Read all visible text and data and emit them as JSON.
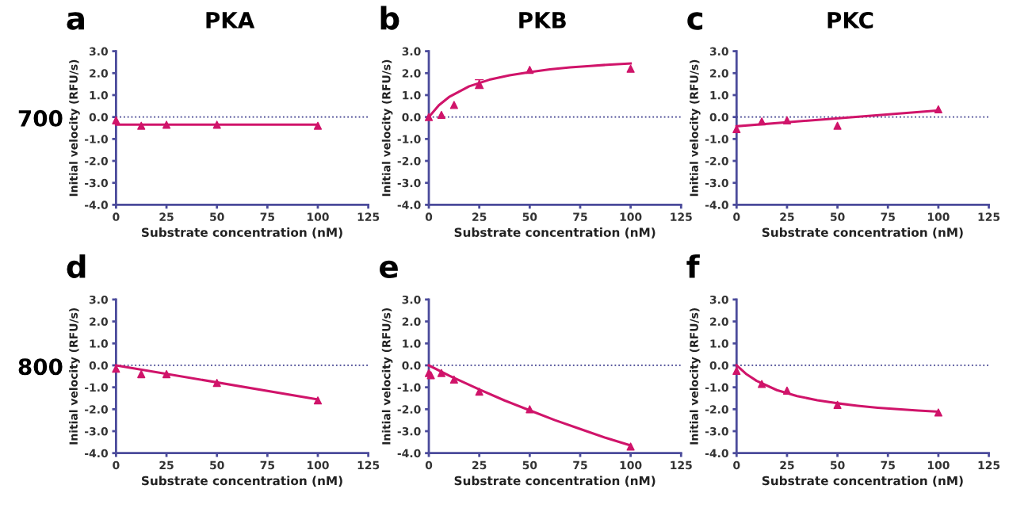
{
  "chart_data": [
    {
      "type": "scatter",
      "title": "a",
      "subtitle": "PKA",
      "annotations": [
        "700"
      ],
      "xlabel": "Substrate concentration (nM)",
      "ylabel": "Initial velocity (RFU/s)",
      "xlim": [
        0,
        125
      ],
      "xticks": [
        0,
        25,
        50,
        75,
        100,
        125
      ],
      "ylim": [
        -4,
        3
      ],
      "yticks": [
        {
          "value": -4,
          "label": "-4.0"
        },
        {
          "value": -3,
          "label": "-3.0"
        },
        {
          "value": -2,
          "label": "-2.0"
        },
        {
          "value": -1,
          "label": "-1.0"
        },
        {
          "value": 0,
          "label": "0.0"
        },
        {
          "value": 1,
          "label": "1.0"
        },
        {
          "value": 2,
          "label": "2.0"
        },
        {
          "value": 3,
          "label": "3.0"
        }
      ],
      "grid": false,
      "ref_lines": [
        {
          "axis": "y",
          "value": 0,
          "color": "#3c3c8c",
          "line_style": "dotted"
        }
      ],
      "series": [
        {
          "marker": "triangle",
          "color": "#d0146a",
          "x": [
            0,
            12.5,
            25,
            50,
            100
          ],
          "values": [
            -0.15,
            -0.4,
            -0.35,
            -0.35,
            -0.4
          ]
        },
        {
          "type": "line",
          "marker": "none",
          "color": "#d0146a",
          "x": [
            0,
            100
          ],
          "values": [
            -0.35,
            -0.35
          ]
        }
      ]
    },
    {
      "type": "scatter",
      "title": "b",
      "subtitle": "PKB",
      "xlabel": "Substrate concentration (nM)",
      "ylabel": "Initial velocity (RFU/s)",
      "xlim": [
        0,
        125
      ],
      "xticks": [
        0,
        25,
        50,
        75,
        100,
        125
      ],
      "ylim": [
        -4,
        3
      ],
      "yticks": [
        {
          "value": -4,
          "label": "-4.0"
        },
        {
          "value": -3,
          "label": "-3.0"
        },
        {
          "value": -2,
          "label": "-2.0"
        },
        {
          "value": -1,
          "label": "-1.0"
        },
        {
          "value": 0,
          "label": "0.0"
        },
        {
          "value": 1,
          "label": "1.0"
        },
        {
          "value": 2,
          "label": "2.0"
        },
        {
          "value": 3,
          "label": "3.0"
        }
      ],
      "grid": false,
      "ref_lines": [
        {
          "axis": "y",
          "value": 0,
          "color": "#3c3c8c",
          "line_style": "dotted"
        }
      ],
      "series": [
        {
          "marker": "triangle",
          "color": "#d0146a",
          "x": [
            0,
            6.25,
            12.5,
            25,
            50,
            100
          ],
          "values": [
            0,
            0.1,
            0.55,
            1.5,
            2.15,
            2.2
          ],
          "errors": [
            null,
            null,
            null,
            0.2,
            null,
            null
          ]
        },
        {
          "type": "line",
          "marker": "none",
          "color": "#d0146a",
          "x": [
            0,
            5,
            10,
            20,
            30,
            40,
            50,
            60,
            70,
            80,
            90,
            100
          ],
          "values": [
            0,
            0.54,
            0.91,
            1.4,
            1.7,
            1.9,
            2.05,
            2.17,
            2.26,
            2.33,
            2.39,
            2.44
          ]
        }
      ]
    },
    {
      "type": "scatter",
      "title": "c",
      "subtitle": "PKC",
      "xlabel": "Substrate concentration (nM)",
      "ylabel": "Initial velocity (RFU/s)",
      "xlim": [
        0,
        125
      ],
      "xticks": [
        0,
        25,
        50,
        75,
        100,
        125
      ],
      "ylim": [
        -4,
        3
      ],
      "yticks": [
        {
          "value": -4,
          "label": "-4.0"
        },
        {
          "value": -3,
          "label": "-3.0"
        },
        {
          "value": -2,
          "label": "-2.0"
        },
        {
          "value": -1,
          "label": "-1.0"
        },
        {
          "value": 0,
          "label": "0.0"
        },
        {
          "value": 1,
          "label": "1.0"
        },
        {
          "value": 2,
          "label": "2.0"
        },
        {
          "value": 3,
          "label": "3.0"
        }
      ],
      "grid": false,
      "ref_lines": [
        {
          "axis": "y",
          "value": 0,
          "color": "#3c3c8c",
          "line_style": "dotted"
        }
      ],
      "series": [
        {
          "marker": "triangle",
          "color": "#d0146a",
          "x": [
            0,
            12.5,
            25,
            50,
            100
          ],
          "values": [
            -0.55,
            -0.2,
            -0.15,
            -0.4,
            0.35
          ]
        },
        {
          "type": "line",
          "marker": "none",
          "color": "#d0146a",
          "x": [
            0,
            100
          ],
          "values": [
            -0.42,
            0.3
          ]
        }
      ]
    },
    {
      "type": "scatter",
      "title": "d",
      "annotations": [
        "800"
      ],
      "xlabel": "Substrate concentration (nM)",
      "ylabel": "Initial velocity (RFU/s)",
      "xlim": [
        0,
        125
      ],
      "xticks": [
        0,
        25,
        50,
        75,
        100,
        125
      ],
      "ylim": [
        -4,
        3
      ],
      "yticks": [
        {
          "value": -4,
          "label": "-4.0"
        },
        {
          "value": -3,
          "label": "-3.0"
        },
        {
          "value": -2,
          "label": "-2.0"
        },
        {
          "value": -1,
          "label": "-1.0"
        },
        {
          "value": 0,
          "label": "0.0"
        },
        {
          "value": 1,
          "label": "1.0"
        },
        {
          "value": 2,
          "label": "2.0"
        },
        {
          "value": 3,
          "label": "3.0"
        }
      ],
      "grid": false,
      "ref_lines": [
        {
          "axis": "y",
          "value": 0,
          "color": "#3c3c8c",
          "line_style": "dotted"
        }
      ],
      "series": [
        {
          "marker": "triangle",
          "color": "#d0146a",
          "x": [
            0,
            12.5,
            25,
            50,
            100
          ],
          "values": [
            -0.15,
            -0.4,
            -0.4,
            -0.8,
            -1.6
          ]
        },
        {
          "type": "line",
          "marker": "none",
          "color": "#d0146a",
          "x": [
            0,
            100
          ],
          "values": [
            0,
            -1.55
          ]
        }
      ]
    },
    {
      "type": "scatter",
      "title": "e",
      "xlabel": "Substrate concentration (nM)",
      "ylabel": "Initial velocity (RFU/s)",
      "xlim": [
        0,
        125
      ],
      "xticks": [
        0,
        25,
        50,
        75,
        100,
        125
      ],
      "ylim": [
        -4,
        3
      ],
      "yticks": [
        {
          "value": -4,
          "label": "-4.0"
        },
        {
          "value": -3,
          "label": "-3.0"
        },
        {
          "value": -2,
          "label": "-2.0"
        },
        {
          "value": -1,
          "label": "-1.0"
        },
        {
          "value": 0,
          "label": "0.0"
        },
        {
          "value": 1,
          "label": "1.0"
        },
        {
          "value": 2,
          "label": "2.0"
        },
        {
          "value": 3,
          "label": "3.0"
        }
      ],
      "grid": false,
      "ref_lines": [
        {
          "axis": "y",
          "value": 0,
          "color": "#3c3c8c",
          "line_style": "dotted"
        }
      ],
      "series": [
        {
          "marker": "triangle",
          "color": "#d0146a",
          "x": [
            0,
            1,
            6.25,
            12.5,
            25,
            50,
            100
          ],
          "values": [
            -0.35,
            -0.45,
            -0.35,
            -0.65,
            -1.2,
            -2.0,
            -3.7
          ]
        },
        {
          "type": "line",
          "marker": "none",
          "color": "#d0146a",
          "x": [
            0,
            10,
            25,
            37.5,
            50,
            62.5,
            75,
            87.5,
            100
          ],
          "values": [
            0,
            -0.47,
            -1.1,
            -1.6,
            -2.05,
            -2.5,
            -2.9,
            -3.3,
            -3.65
          ]
        }
      ]
    },
    {
      "type": "scatter",
      "title": "f",
      "xlabel": "Substrate concentration (nM)",
      "ylabel": "Initial velocity (RFU/s)",
      "xlim": [
        0,
        125
      ],
      "xticks": [
        0,
        25,
        50,
        75,
        100,
        125
      ],
      "ylim": [
        -4,
        3
      ],
      "yticks": [
        {
          "value": -4,
          "label": "-4.0"
        },
        {
          "value": -3,
          "label": "-3.0"
        },
        {
          "value": -2,
          "label": "-2.0"
        },
        {
          "value": -1,
          "label": "-1.0"
        },
        {
          "value": 0,
          "label": "0.0"
        },
        {
          "value": 1,
          "label": "1.0"
        },
        {
          "value": 2,
          "label": "2.0"
        },
        {
          "value": 3,
          "label": "3.0"
        }
      ],
      "grid": false,
      "ref_lines": [
        {
          "axis": "y",
          "value": 0,
          "color": "#3c3c8c",
          "line_style": "dotted"
        }
      ],
      "series": [
        {
          "marker": "triangle",
          "color": "#d0146a",
          "x": [
            0,
            12.5,
            25,
            50,
            100
          ],
          "values": [
            -0.25,
            -0.85,
            -1.15,
            -1.8,
            -2.15
          ]
        },
        {
          "type": "line",
          "marker": "none",
          "color": "#d0146a",
          "x": [
            0,
            5,
            10,
            20,
            30,
            40,
            50,
            60,
            70,
            80,
            90,
            100
          ],
          "values": [
            0,
            -0.41,
            -0.71,
            -1.13,
            -1.4,
            -1.59,
            -1.73,
            -1.84,
            -1.93,
            -2.0,
            -2.06,
            -2.11
          ]
        }
      ]
    }
  ]
}
